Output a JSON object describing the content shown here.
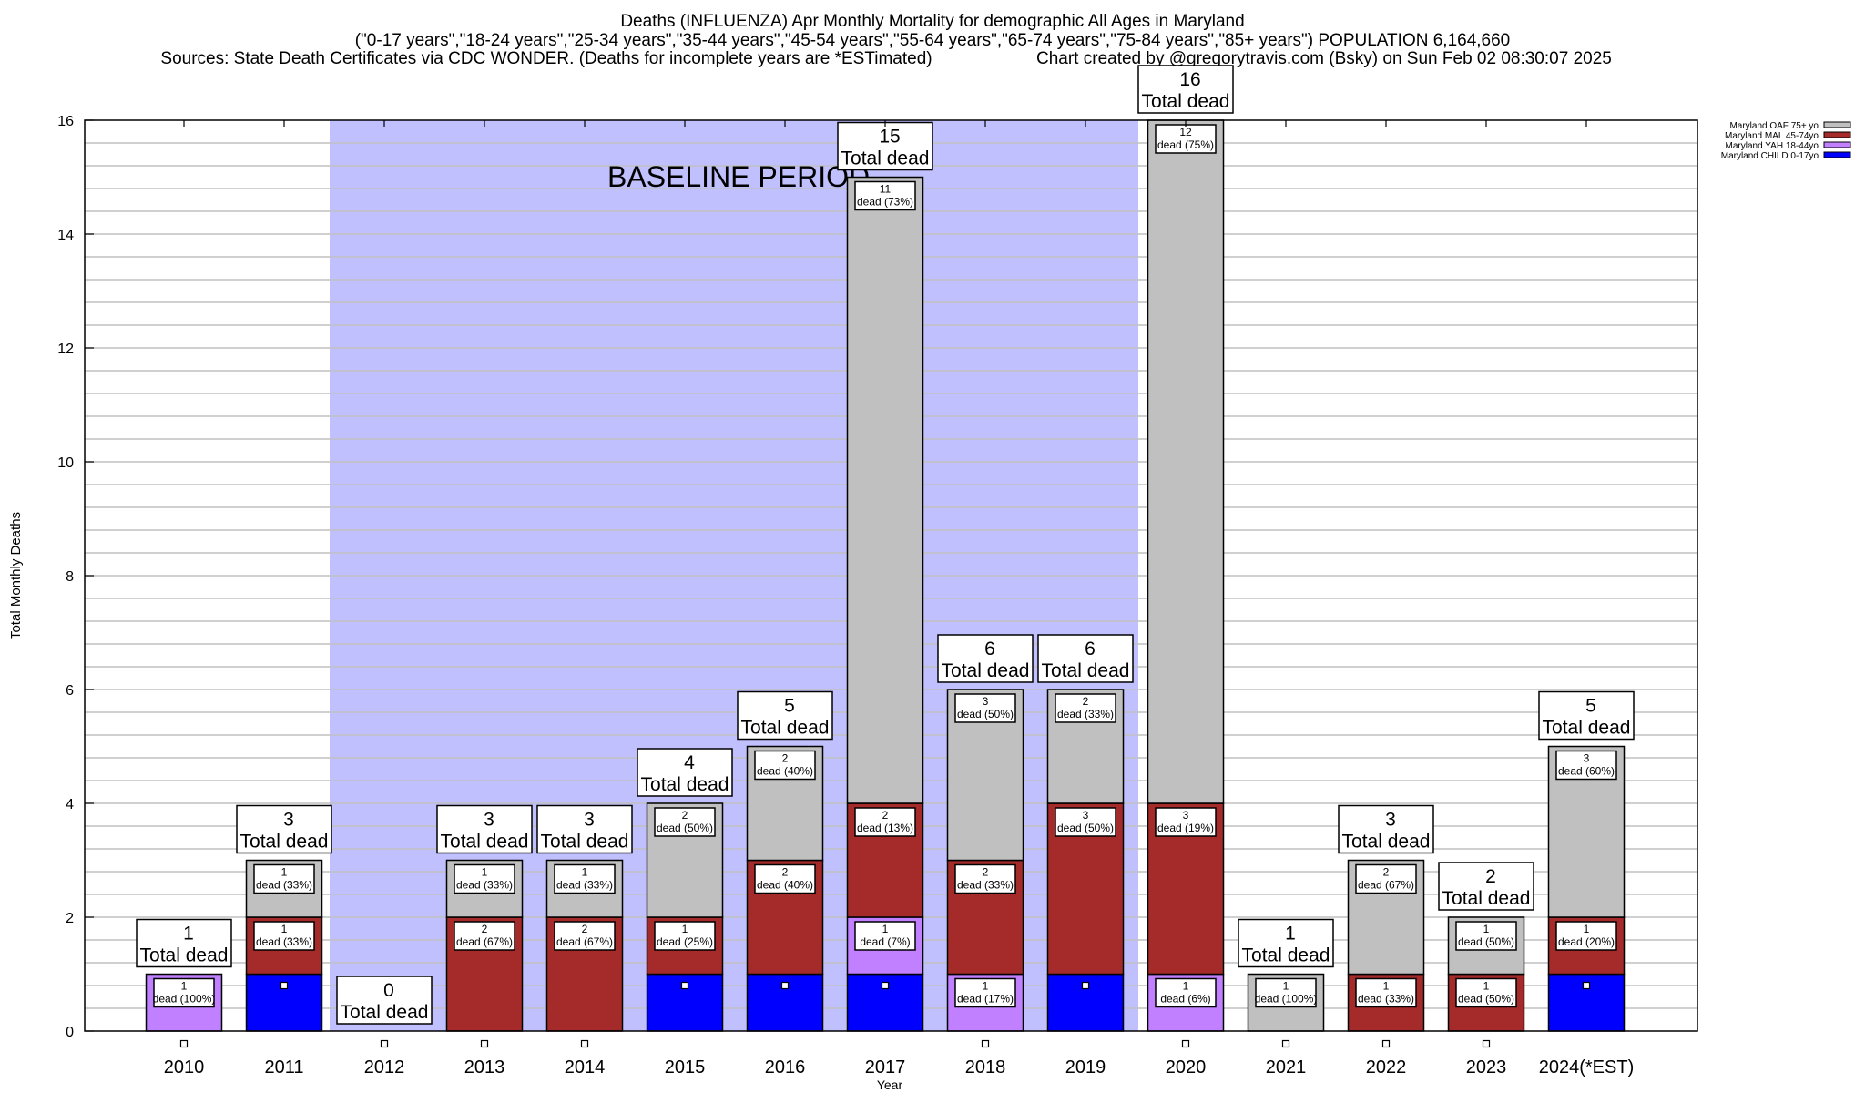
{
  "chart_data": {
    "type": "bar",
    "stacked": true,
    "title": "Deaths (INFLUENZA) Apr Monthly Mortality for demographic All Ages in Maryland",
    "subtitle": "(\"0-17 years\",\"18-24 years\",\"25-34 years\",\"35-44 years\",\"45-54 years\",\"55-64 years\",\"65-74 years\",\"75-84 years\",\"85+ years\") POPULATION 6,164,660",
    "source": "Sources: State Death Certificates via CDC WONDER. (Deaths for incomplete years are *ESTimated)",
    "credit": "Chart created by @gregorytravis.com (Bsky) on Sun Feb 02 08:30:07 2025",
    "xlabel": "Year",
    "ylabel": "Total Monthly Deaths",
    "ylim": [
      0,
      16
    ],
    "yticks": [
      0,
      2,
      4,
      6,
      8,
      10,
      12,
      14,
      16
    ],
    "grid": true,
    "legend_position": "top-right",
    "annotation": "BASELINE PERIOD",
    "baseline_period": [
      "2012",
      "2019"
    ],
    "baseline_color": "#c0c0ff",
    "total_label_suffix": "Total dead",
    "segment_label_word": "dead",
    "categories": [
      "2010",
      "2011",
      "2012",
      "2013",
      "2014",
      "2015",
      "2016",
      "2017",
      "2018",
      "2019",
      "2020",
      "2021",
      "2022",
      "2023",
      "2024(*EST)"
    ],
    "series": [
      {
        "name": "Maryland CHILD 0-17yo",
        "color": "#0000ff",
        "values": [
          0,
          1,
          0,
          0,
          0,
          1,
          1,
          1,
          0,
          1,
          0,
          0,
          0,
          0,
          1
        ]
      },
      {
        "name": "Maryland YAH 18-44yo",
        "color": "#c080ff",
        "values": [
          1,
          0,
          0,
          0,
          0,
          0,
          0,
          1,
          1,
          0,
          1,
          0,
          0,
          0,
          0
        ]
      },
      {
        "name": "Maryland MAL 45-74yo",
        "color": "#a52a2a",
        "values": [
          0,
          1,
          0,
          2,
          2,
          1,
          2,
          2,
          2,
          3,
          3,
          0,
          1,
          1,
          1
        ]
      },
      {
        "name": "Maryland OAF 75+ yo",
        "color": "#c0c0c0",
        "values": [
          0,
          1,
          0,
          1,
          1,
          2,
          2,
          11,
          3,
          2,
          12,
          1,
          2,
          1,
          3
        ]
      }
    ],
    "totals": [
      1,
      3,
      0,
      3,
      3,
      4,
      5,
      15,
      6,
      6,
      16,
      1,
      3,
      2,
      5
    ]
  }
}
